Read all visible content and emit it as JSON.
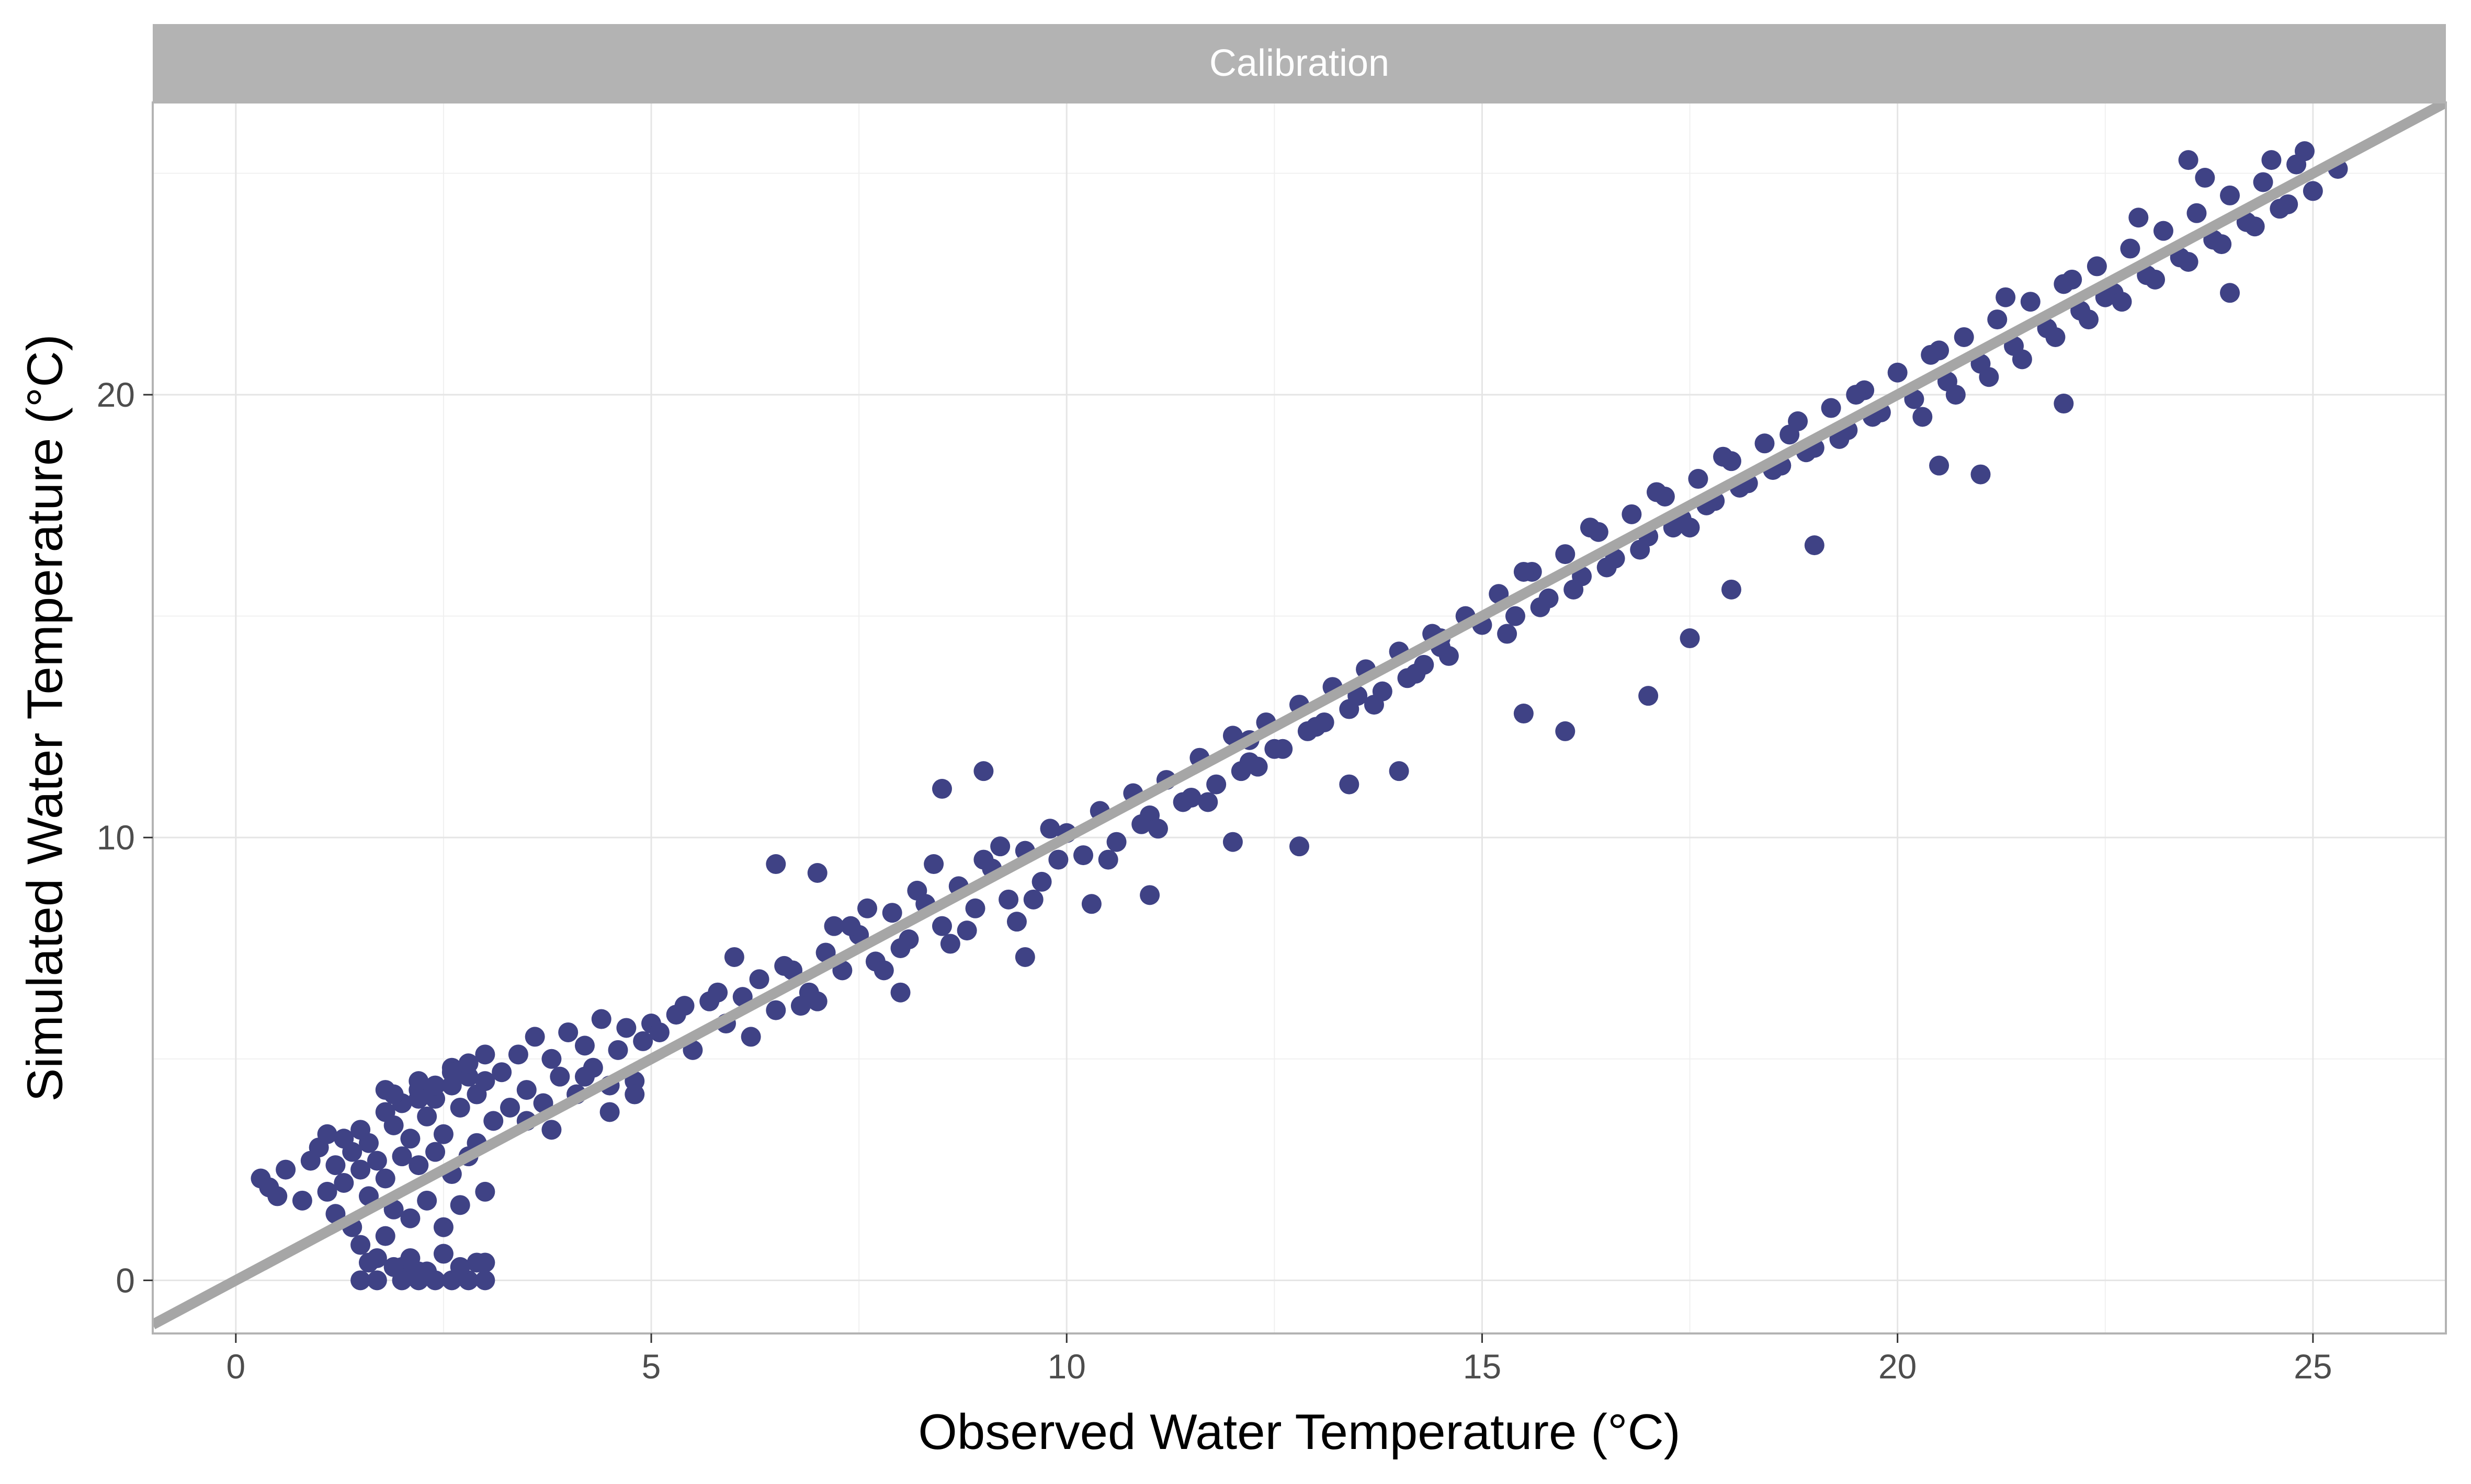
{
  "chart_data": {
    "type": "scatter",
    "panel_title": "Calibration",
    "xlabel": "Observed Water Temperature (°C)",
    "ylabel": "Simulated Water Temperature (°C)",
    "xlim": [
      -1,
      26.6
    ],
    "ylim": [
      -1.2,
      26.6
    ],
    "xticks": [
      0,
      5,
      10,
      15,
      20,
      25
    ],
    "xtick_labels": [
      "0",
      "5",
      "10",
      "15",
      "20",
      "25"
    ],
    "yticks": [
      0,
      10,
      20
    ],
    "ytick_labels": [
      "0",
      "10",
      "20"
    ],
    "grid": true,
    "legend": "none",
    "reference_line": {
      "slope": 1,
      "intercept": 0,
      "color": "#a6a6a6"
    },
    "colors": {
      "points": "#3f4285",
      "reference_line": "#a6a6a6",
      "strip_fill": "#b3b3b3",
      "grid": "#e5e5e5",
      "panel_border": "#b3b3b3"
    },
    "series": [
      {
        "x": [
          0.3,
          0.4,
          0.6,
          0.8,
          0.9,
          1.0,
          1.1,
          1.2,
          1.2,
          1.3,
          1.3,
          1.4,
          1.4,
          1.5,
          1.5,
          1.5,
          1.6,
          1.6,
          1.7,
          1.7,
          1.8,
          1.8,
          1.8,
          1.9,
          1.9,
          2.0,
          2.0,
          2.0,
          2.1,
          2.1,
          2.2,
          2.2,
          2.2,
          2.3,
          2.3,
          2.4,
          2.4,
          2.5,
          2.5,
          2.6,
          2.6,
          2.7,
          2.7,
          2.8,
          2.8,
          2.9,
          2.9,
          3.0,
          3.0,
          3.1,
          1.5,
          1.7,
          2.0,
          2.2,
          2.4,
          2.6,
          2.8,
          3.0,
          1.6,
          1.9,
          2.1,
          2.3,
          2.5,
          2.7,
          2.9,
          1.8,
          2.2,
          2.6,
          3.2,
          3.3,
          3.4,
          3.5,
          3.6,
          3.7,
          3.8,
          3.9,
          4.0,
          4.1,
          4.2,
          4.3,
          4.4,
          4.5,
          4.6,
          4.7,
          4.8,
          4.9,
          5.0,
          3.5,
          3.8,
          4.2,
          4.5,
          4.8,
          5.1,
          5.3,
          5.5,
          5.7,
          5.9,
          6.1,
          6.3,
          6.5,
          6.7,
          6.9,
          7.1,
          7.3,
          7.5,
          7.7,
          7.9,
          8.1,
          8.3,
          8.5,
          8.7,
          8.9,
          9.1,
          9.3,
          9.5,
          9.7,
          9.9,
          5.4,
          5.8,
          6.2,
          6.6,
          7.0,
          7.4,
          7.8,
          8.2,
          8.6,
          9.0,
          9.4,
          9.8,
          6.0,
          6.8,
          7.2,
          7.6,
          8.0,
          8.4,
          8.8,
          9.2,
          9.6,
          10.0,
          10.2,
          10.4,
          10.6,
          10.8,
          11.0,
          11.2,
          11.4,
          11.6,
          11.8,
          12.0,
          12.2,
          12.4,
          12.6,
          12.8,
          13.0,
          13.2,
          13.4,
          13.6,
          13.8,
          14.0,
          14.2,
          14.4,
          14.6,
          14.8,
          10.5,
          11.1,
          11.5,
          12.1,
          12.5,
          13.1,
          13.5,
          14.1,
          14.5,
          10.9,
          11.7,
          12.3,
          12.9,
          13.7,
          14.3,
          15.0,
          15.2,
          15.4,
          15.6,
          15.8,
          16.0,
          16.2,
          16.4,
          16.6,
          16.8,
          17.0,
          17.2,
          17.4,
          17.6,
          17.8,
          18.0,
          18.2,
          18.4,
          18.6,
          18.8,
          19.0,
          19.2,
          19.4,
          19.6,
          19.8,
          15.3,
          15.7,
          16.1,
          16.5,
          16.9,
          17.3,
          17.7,
          18.1,
          18.5,
          18.9,
          19.3,
          19.7,
          15.5,
          16.3,
          17.1,
          17.9,
          18.7,
          19.5,
          20.0,
          20.2,
          20.4,
          20.6,
          20.8,
          21.0,
          21.2,
          21.4,
          21.6,
          21.8,
          22.0,
          22.2,
          22.4,
          22.6,
          22.8,
          23.0,
          23.2,
          23.4,
          23.6,
          23.8,
          24.0,
          24.2,
          24.4,
          24.6,
          24.8,
          25.0,
          20.3,
          20.7,
          21.1,
          21.5,
          21.9,
          22.3,
          22.7,
          23.1,
          23.5,
          23.9,
          24.3,
          24.7,
          20.5,
          21.3,
          22.1,
          22.9,
          23.7,
          24.5,
          0.5,
          1.1,
          3.0,
          6.5,
          7.0,
          8.5,
          9.0,
          10.3,
          11.0,
          12.2,
          12.0,
          13.4,
          14.0,
          14.5,
          16.0,
          17.0,
          17.5,
          18.0,
          19.0,
          20.5,
          22.5,
          23.5,
          24.9,
          25.3,
          8.0,
          9.5,
          12.8,
          15.5,
          17.5,
          21.0,
          22.0,
          24.0,
          2.4,
          2.2,
          2.8,
          3.0,
          1.9,
          2.6
        ],
        "y": [
          2.3,
          2.1,
          2.5,
          1.8,
          2.7,
          3.0,
          2.0,
          2.6,
          1.5,
          3.2,
          2.2,
          2.9,
          1.2,
          3.4,
          2.5,
          0.8,
          3.1,
          1.9,
          2.7,
          0.5,
          3.8,
          2.3,
          1.0,
          3.5,
          1.6,
          4.0,
          2.8,
          0.3,
          3.2,
          1.4,
          4.3,
          2.6,
          0.2,
          3.7,
          1.8,
          4.1,
          2.9,
          3.3,
          1.2,
          4.4,
          2.4,
          3.9,
          1.7,
          4.6,
          2.8,
          4.2,
          3.1,
          4.5,
          2.0,
          3.6,
          0.0,
          0.0,
          0.0,
          0.0,
          0.0,
          0.0,
          0.0,
          0.0,
          0.4,
          0.3,
          0.5,
          0.2,
          0.6,
          0.3,
          0.4,
          4.3,
          4.1,
          4.8,
          4.7,
          3.9,
          5.1,
          4.3,
          5.5,
          4.0,
          5.0,
          4.6,
          5.6,
          4.2,
          5.3,
          4.8,
          5.9,
          4.4,
          5.2,
          5.7,
          4.5,
          5.4,
          5.8,
          3.6,
          3.4,
          4.6,
          3.8,
          4.2,
          5.6,
          6.0,
          5.2,
          6.3,
          5.8,
          6.4,
          6.8,
          6.1,
          7.0,
          6.5,
          7.4,
          7.0,
          7.8,
          7.2,
          8.3,
          7.7,
          8.5,
          8.0,
          8.9,
          8.4,
          9.3,
          8.6,
          9.7,
          9.0,
          9.5,
          6.2,
          6.5,
          5.5,
          7.1,
          6.3,
          8.0,
          7.0,
          8.8,
          7.6,
          9.5,
          8.1,
          10.2,
          7.3,
          6.2,
          8.0,
          8.4,
          7.5,
          9.4,
          7.9,
          9.8,
          8.6,
          10.1,
          9.6,
          10.6,
          9.9,
          11.0,
          10.5,
          11.3,
          10.8,
          11.8,
          11.2,
          12.3,
          11.7,
          12.6,
          12.0,
          13.0,
          12.5,
          13.4,
          12.9,
          13.8,
          13.3,
          14.2,
          13.7,
          14.6,
          14.1,
          15.0,
          9.5,
          10.2,
          10.9,
          11.5,
          12.0,
          12.6,
          13.2,
          13.6,
          14.3,
          10.3,
          10.8,
          11.6,
          12.4,
          13.0,
          13.9,
          14.8,
          15.5,
          15.0,
          16.0,
          15.4,
          16.4,
          15.9,
          16.9,
          16.3,
          17.3,
          16.8,
          17.7,
          17.2,
          18.1,
          17.6,
          18.5,
          18.0,
          18.9,
          18.4,
          19.4,
          18.8,
          19.7,
          19.2,
          20.1,
          19.6,
          14.6,
          15.2,
          15.6,
          16.1,
          16.5,
          17.0,
          17.5,
          17.9,
          18.3,
          18.7,
          19.0,
          19.5,
          16.0,
          17.0,
          17.8,
          18.6,
          19.1,
          20.0,
          20.5,
          19.9,
          20.9,
          20.3,
          21.3,
          20.7,
          21.7,
          21.1,
          22.1,
          21.5,
          22.5,
          21.9,
          22.9,
          22.3,
          23.3,
          22.7,
          23.7,
          23.1,
          24.1,
          23.5,
          24.5,
          23.9,
          24.8,
          24.2,
          25.2,
          24.6,
          19.5,
          20.0,
          20.4,
          20.8,
          21.3,
          21.7,
          22.1,
          22.6,
          23.0,
          23.4,
          23.8,
          24.3,
          21.0,
          22.2,
          22.6,
          24.0,
          24.9,
          25.3,
          1.9,
          3.3,
          0.4,
          9.4,
          9.2,
          11.1,
          11.5,
          8.5,
          8.7,
          12.2,
          9.9,
          11.2,
          11.5,
          14.5,
          12.4,
          13.2,
          14.5,
          15.6,
          16.6,
          18.4,
          22.2,
          25.3,
          25.5,
          25.1,
          6.5,
          7.3,
          9.8,
          12.8,
          17.0,
          18.2,
          19.8,
          22.3,
          4.4,
          4.5,
          4.9,
          5.1,
          4.2,
          4.7
        ]
      }
    ]
  }
}
